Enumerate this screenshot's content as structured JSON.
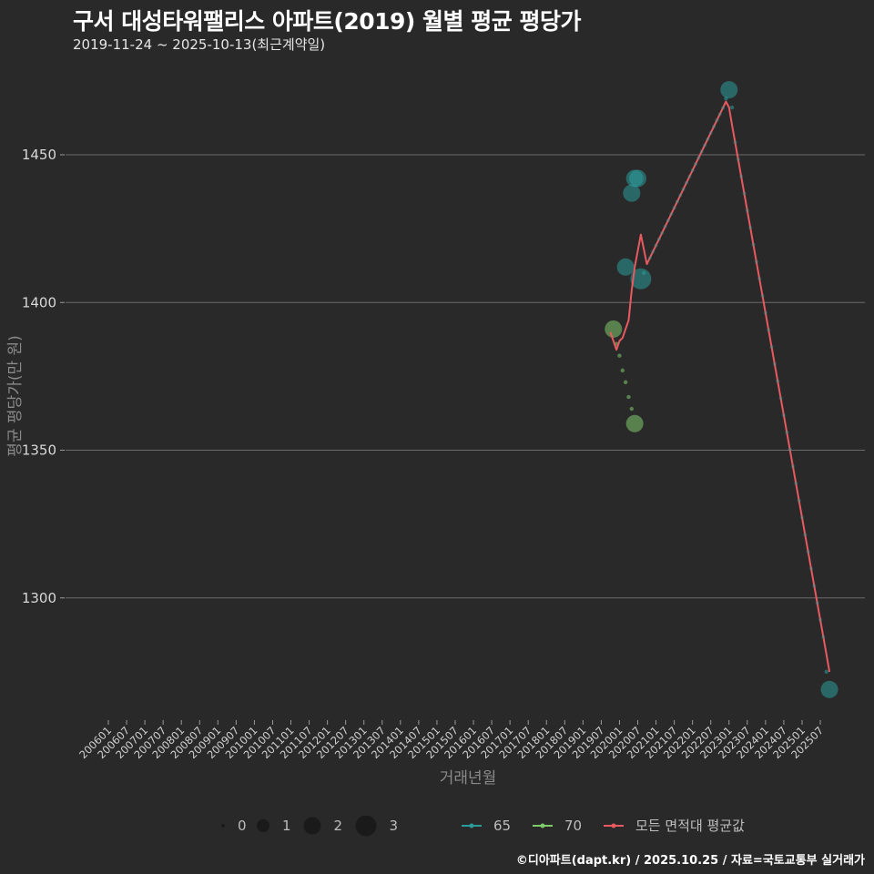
{
  "header": {
    "title": "구서 대성타워팰리스 아파트(2019) 월별 평균 평당가",
    "subtitle": "2019-11-24 ~ 2025-10-13(최근계약일)"
  },
  "caption": "©디아파트(dapt.kr) / 2025.10.25 / 자료=국토교통부 실거래가",
  "colors": {
    "background": "#2a292a",
    "grid": "#6b6b6b",
    "series_65": "#2a9d9a",
    "series_70": "#7ecb6a",
    "series_avg": "#e85a5f"
  },
  "legend": {
    "size_items": [
      {
        "label": "0",
        "r": 2
      },
      {
        "label": "1",
        "r": 7
      },
      {
        "label": "2",
        "r": 9.5
      },
      {
        "label": "3",
        "r": 11.5
      }
    ],
    "line_items": [
      {
        "label": "65",
        "color": "#2a9d9a"
      },
      {
        "label": "70",
        "color": "#7ecb6a"
      },
      {
        "label": "모든 면적대 평균값",
        "color": "#e85a5f"
      }
    ]
  },
  "chart_data": {
    "type": "line",
    "title": "구서 대성타워팰리스 아파트(2019) 월별 평균 평당가",
    "subtitle": "2019-11-24 ~ 2025-10-13(최근계약일)",
    "xlabel": "거래년월",
    "ylabel": "평균 평당가(만 원)",
    "ylim": [
      1258,
      1478
    ],
    "yticks": [
      1300,
      1350,
      1400,
      1450
    ],
    "xticks": [
      "200601",
      "200607",
      "200701",
      "200707",
      "200801",
      "200807",
      "200901",
      "200907",
      "201001",
      "201007",
      "201101",
      "201107",
      "201201",
      "201207",
      "201301",
      "201307",
      "201401",
      "201407",
      "201501",
      "201507",
      "201601",
      "201607",
      "201701",
      "201707",
      "201801",
      "201807",
      "201901",
      "201907",
      "202001",
      "202007",
      "202101",
      "202107",
      "202201",
      "202207",
      "202301",
      "202307",
      "202401",
      "202407",
      "202501",
      "202507"
    ],
    "grid": true,
    "legend_position": "bottom",
    "series": [
      {
        "name": "65",
        "points": [
          {
            "x": "202003",
            "y": 1412,
            "count": 2
          },
          {
            "x": "202005",
            "y": 1437,
            "count": 2
          },
          {
            "x": "202006",
            "y": 1442,
            "count": 2
          },
          {
            "x": "202007",
            "y": 1442,
            "count": 2
          },
          {
            "x": "202008",
            "y": 1408,
            "count": 3
          },
          {
            "x": "202009",
            "y": 1410,
            "count": 0
          },
          {
            "x": "202212",
            "y": 1469,
            "count": 0
          },
          {
            "x": "202301",
            "y": 1472,
            "count": 2
          },
          {
            "x": "202302",
            "y": 1466,
            "count": 0
          },
          {
            "x": "202509",
            "y": 1275,
            "count": 0
          },
          {
            "x": "202510",
            "y": 1269,
            "count": 2
          }
        ]
      },
      {
        "name": "70",
        "points": [
          {
            "x": "201911",
            "y": 1391,
            "count": 2
          },
          {
            "x": "201912",
            "y": 1386,
            "count": 0
          },
          {
            "x": "202001",
            "y": 1382,
            "count": 0
          },
          {
            "x": "202002",
            "y": 1377,
            "count": 0
          },
          {
            "x": "202003",
            "y": 1373,
            "count": 0
          },
          {
            "x": "202004",
            "y": 1368,
            "count": 0
          },
          {
            "x": "202005",
            "y": 1364,
            "count": 0
          },
          {
            "x": "202006",
            "y": 1359,
            "count": 2
          }
        ]
      },
      {
        "name": "모든 면적대 평균값",
        "points": [
          {
            "x": "201910",
            "y": 1390
          },
          {
            "x": "201912",
            "y": 1384
          },
          {
            "x": "202001",
            "y": 1387
          },
          {
            "x": "202002",
            "y": 1388
          },
          {
            "x": "202004",
            "y": 1394
          },
          {
            "x": "202005",
            "y": 1404
          },
          {
            "x": "202006",
            "y": 1412
          },
          {
            "x": "202008",
            "y": 1423
          },
          {
            "x": "202010",
            "y": 1413
          },
          {
            "x": "202212",
            "y": 1468
          },
          {
            "x": "202301",
            "y": 1466
          },
          {
            "x": "202302",
            "y": 1460
          },
          {
            "x": "202509",
            "y": 1281
          },
          {
            "x": "202510",
            "y": 1275
          }
        ]
      }
    ]
  }
}
